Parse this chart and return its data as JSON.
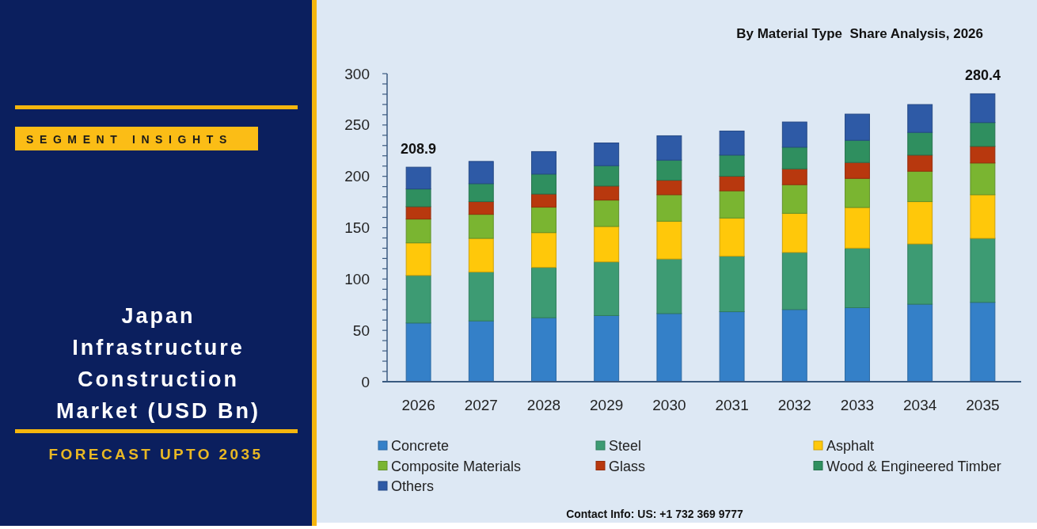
{
  "chart_data": {
    "type": "bar",
    "title": "Japan Infrastructure Construction Market (USD Bn)",
    "subtitle": "By Material Type  Share Analysis, 2026",
    "annotations": [
      "SEGMENT INSIGHTS",
      "FORECAST UPTO 2035",
      "Contact Info: US: +1 732 369 9777"
    ],
    "categories": [
      "2026",
      "2027",
      "2028",
      "2029",
      "2030",
      "2031",
      "2032",
      "2033",
      "2034",
      "2035"
    ],
    "series": [
      {
        "name": "Concrete",
        "color": "#3480c8",
        "values": [
          57.2,
          59.2,
          62.3,
          64.4,
          66.4,
          68.2,
          70.3,
          72.1,
          75.5,
          77.3
        ]
      },
      {
        "name": "Steel",
        "color": "#3d9b73",
        "values": [
          46.3,
          47.7,
          49.0,
          52.3,
          53.1,
          54.1,
          55.6,
          58.0,
          58.7,
          62.3
        ]
      },
      {
        "name": "Asphalt",
        "color": "#ffc80a",
        "values": [
          31.7,
          32.7,
          33.9,
          34.5,
          36.8,
          37.1,
          38.1,
          39.6,
          41.2,
          42.5
        ]
      },
      {
        "name": "Composite Materials",
        "color": "#7ab531",
        "values": [
          23.2,
          23.4,
          24.8,
          25.7,
          25.8,
          26.5,
          27.9,
          28.3,
          29.6,
          30.9
        ]
      },
      {
        "name": "Glass",
        "color": "#b8380e",
        "values": [
          12.1,
          12.4,
          12.8,
          13.7,
          14.1,
          14.2,
          15.4,
          15.5,
          15.7,
          16.2
        ]
      },
      {
        "name": "Wood & Engineered Timber",
        "color": "#2f8f5f",
        "values": [
          17.2,
          17.5,
          19.4,
          19.8,
          19.6,
          20.6,
          21.1,
          21.6,
          22.1,
          23.2
        ]
      },
      {
        "name": "Others",
        "color": "#2e5aa6",
        "values": [
          21.2,
          21.6,
          21.9,
          22.1,
          23.7,
          23.4,
          24.5,
          25.5,
          27.1,
          28.0
        ]
      }
    ],
    "stacked": true,
    "totals": [
      "208.9",
      null,
      null,
      null,
      null,
      null,
      null,
      null,
      null,
      "280.4"
    ],
    "ylim": [
      0,
      300
    ],
    "yticks": [
      0,
      {
        "value": 10,
        "label": null
      },
      {
        "value": 20,
        "label": null
      },
      {
        "value": 30,
        "label": null
      },
      {
        "value": 40,
        "label": null
      },
      50,
      {
        "value": 60,
        "label": null
      },
      {
        "value": 70,
        "label": null
      },
      {
        "value": 80,
        "label": null
      },
      {
        "value": 90,
        "label": null
      },
      100,
      {
        "value": 110,
        "label": null
      },
      {
        "value": 120,
        "label": null
      },
      {
        "value": 130,
        "label": null
      },
      {
        "value": 140,
        "label": null
      },
      150,
      {
        "value": 160,
        "label": null
      },
      {
        "value": 170,
        "label": null
      },
      {
        "value": 180,
        "label": null
      },
      {
        "value": 190,
        "label": null
      },
      200,
      {
        "value": 210,
        "label": null
      },
      {
        "value": 220,
        "label": null
      },
      {
        "value": 230,
        "label": null
      },
      {
        "value": 240,
        "label": null
      },
      250,
      {
        "value": 260,
        "label": null
      },
      {
        "value": 270,
        "label": null
      },
      {
        "value": 280,
        "label": null
      },
      {
        "value": 290,
        "label": null
      },
      300
    ],
    "legend": "bottom"
  }
}
